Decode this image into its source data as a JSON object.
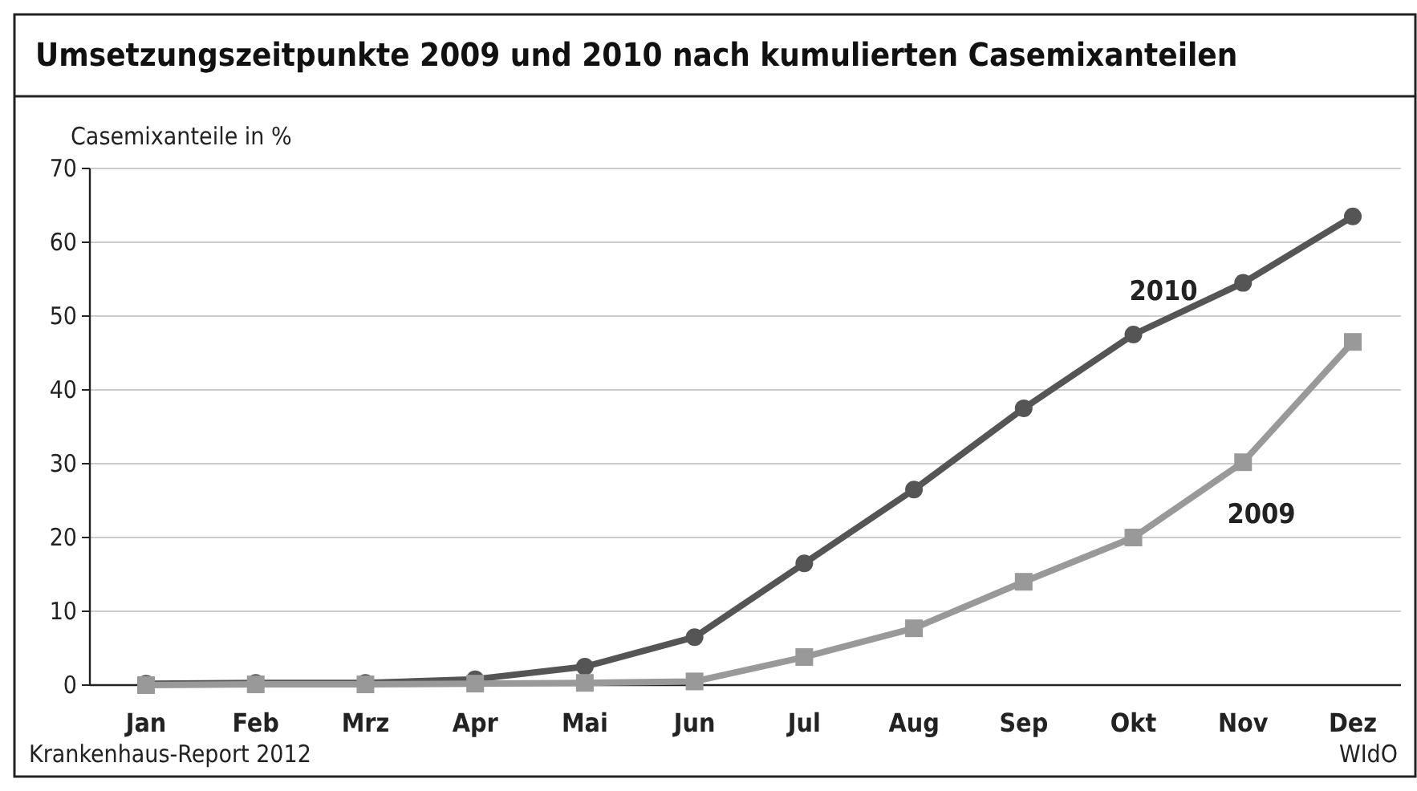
{
  "chart_data": {
    "type": "line",
    "title": "Umsetzungszeitpunkte 2009 und 2010 nach kumulierten Casemixanteilen",
    "ylabel": "Casemixanteile in %",
    "categories": [
      "Jan",
      "Feb",
      "Mrz",
      "Apr",
      "Mai",
      "Jun",
      "Jul",
      "Aug",
      "Sep",
      "Okt",
      "Nov",
      "Dez"
    ],
    "series": [
      {
        "name": "2010",
        "color": "#555555",
        "marker": "circle",
        "values": [
          0.2,
          0.3,
          0.3,
          0.8,
          2.5,
          6.5,
          16.5,
          26.5,
          37.5,
          47.5,
          54.5,
          63.5
        ]
      },
      {
        "name": "2009",
        "color": "#999999",
        "marker": "square",
        "values": [
          0,
          0.1,
          0.1,
          0.2,
          0.3,
          0.5,
          3.8,
          7.7,
          14,
          20,
          30.2,
          46.5
        ]
      }
    ],
    "ylim": [
      0,
      70
    ],
    "yticks": [
      0,
      10,
      20,
      30,
      40,
      50,
      60,
      70
    ],
    "grid": "y",
    "annotations": [
      "Krankenhaus-Report 2012",
      "WIdO"
    ]
  }
}
